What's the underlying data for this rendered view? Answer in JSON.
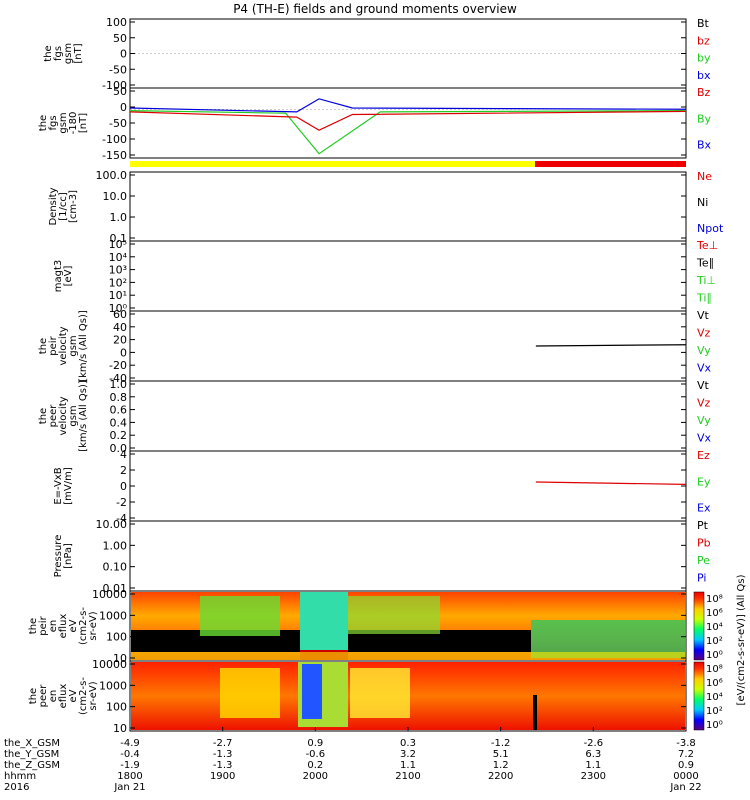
{
  "chart_data": {
    "type": "line",
    "title": "P4 (TH-E) fields and ground moments overview",
    "panels": [
      {
        "name": "fgs",
        "ylabel": [
          "the",
          "fgs",
          "gsm",
          "[nT]"
        ],
        "ylim": [
          -100,
          100
        ],
        "ticks": [
          "100",
          "50",
          "0",
          "-50",
          "-100"
        ],
        "legend": [
          {
            "label": "Bt",
            "color": "#000000"
          },
          {
            "label": "bz",
            "color": "#dd0000"
          },
          {
            "label": "by",
            "color": "#22cc22"
          },
          {
            "label": "bx",
            "color": "#0000dd"
          }
        ]
      },
      {
        "name": "fgs_sm",
        "ylabel": [
          "the",
          "fgs",
          "gsm",
          "-180",
          "[nT]"
        ],
        "ylim": [
          -175,
          70
        ],
        "ticks": [
          "50",
          "0",
          "-50",
          "-100",
          "-150"
        ],
        "legend": [
          {
            "label": "Bz",
            "color": "#dd0000"
          },
          {
            "label": "By",
            "color": "#22cc22"
          },
          {
            "label": "Bx",
            "color": "#0000dd"
          }
        ]
      },
      {
        "name": "density",
        "ylabel": [
          "Density",
          "[1/cc]",
          "[cm-3]"
        ],
        "log": true,
        "ticks": [
          "100.0",
          "10.0",
          "1.0",
          "0.1"
        ],
        "legend": [
          {
            "label": "Ne",
            "color": "#dd0000"
          },
          {
            "label": "Ni",
            "color": "#000000"
          },
          {
            "label": "Npot",
            "color": "#0000dd"
          }
        ]
      },
      {
        "name": "temperature",
        "ylabel": [
          "magt3",
          "[eV]"
        ],
        "log": true,
        "ticks": [
          "10⁵",
          "10⁴",
          "10³",
          "10²",
          "10¹",
          "10⁰"
        ],
        "legend": [
          {
            "label": "Te⊥",
            "color": "#dd0000"
          },
          {
            "label": "Te∥",
            "color": "#000000"
          },
          {
            "label": "Ti⊥",
            "color": "#22cc22"
          },
          {
            "label": "Ti∥",
            "color": "#22cc22"
          }
        ]
      },
      {
        "name": "peir_velocity",
        "ylabel": [
          "the",
          "peir",
          "velocity",
          "gsm",
          "[km/s (All Qs)]"
        ],
        "ylim": [
          -40,
          60
        ],
        "ticks": [
          "60",
          "40",
          "20",
          "0",
          "-20",
          "-40"
        ],
        "legend": [
          {
            "label": "Vt",
            "color": "#000000"
          },
          {
            "label": "Vz",
            "color": "#dd0000"
          },
          {
            "label": "Vy",
            "color": "#22cc22"
          },
          {
            "label": "Vx",
            "color": "#0000dd"
          }
        ]
      },
      {
        "name": "peer_velocity",
        "ylabel": [
          "the",
          "peer",
          "velocity",
          "gsm",
          "[km/s (All Qs)]"
        ],
        "ylim": [
          0,
          1
        ],
        "ticks": [
          "1.0",
          "0.8",
          "0.6",
          "0.4",
          "0.2",
          "0.0"
        ],
        "legend": [
          {
            "label": "Vt",
            "color": "#000000"
          },
          {
            "label": "Vz",
            "color": "#dd0000"
          },
          {
            "label": "Vy",
            "color": "#22cc22"
          },
          {
            "label": "Vx",
            "color": "#0000dd"
          }
        ]
      },
      {
        "name": "efield",
        "ylabel": [
          "E=-VxB",
          "[mV/m]"
        ],
        "ylim": [
          -4,
          4
        ],
        "ticks": [
          "4",
          "2",
          "0",
          "-2",
          "-4"
        ],
        "legend": [
          {
            "label": "Ez",
            "color": "#dd0000"
          },
          {
            "label": "Ey",
            "color": "#22cc22"
          },
          {
            "label": "Ex",
            "color": "#0000dd"
          }
        ]
      },
      {
        "name": "pressure",
        "ylabel": [
          "Pressure",
          "[nPa]"
        ],
        "log": true,
        "ticks": [
          "10.00",
          "1.00",
          "0.10",
          "0.01"
        ],
        "legend": [
          {
            "label": "Pt",
            "color": "#000000"
          },
          {
            "label": "Pb",
            "color": "#dd0000"
          },
          {
            "label": "Pe",
            "color": "#22cc22"
          },
          {
            "label": "Pi",
            "color": "#0000dd"
          }
        ]
      },
      {
        "name": "peir_eflux",
        "ylabel": [
          "the",
          "peir",
          "en",
          "eflux",
          "eV",
          "(cm2-s-",
          "sr-eV)"
        ],
        "ticks": [
          "10000",
          "1000",
          "100",
          "10"
        ]
      },
      {
        "name": "peer_eflux",
        "ylabel": [
          "the",
          "peer",
          "en",
          "eflux",
          "eV",
          "(cm2-s-",
          "sr-eV)"
        ],
        "ticks": [
          "10000",
          "1000",
          "100",
          "10"
        ]
      }
    ],
    "colorbar": {
      "label": "[eV/(cm2-s-sr-eV)] (All Qs)",
      "ticks": [
        "10⁸",
        "10⁶",
        "10⁴",
        "10²",
        "10⁰"
      ],
      "ticks2": [
        "10⁸",
        "10⁶",
        "10⁴",
        "10²",
        "10⁰"
      ]
    },
    "x_axis": {
      "row_labels": [
        "the_X_GSM",
        "the_Y_GSM",
        "the_Z_GSM",
        "hhmm",
        "2016"
      ],
      "columns": [
        {
          "x": [
            "-4.9",
            "-0.4",
            "-1.9",
            "1800",
            "Jan 21"
          ]
        },
        {
          "x": [
            "-2.7",
            "-1.3",
            "-1.3",
            "1900",
            ""
          ]
        },
        {
          "x": [
            "0.9",
            "-0.6",
            "0.2",
            "2000",
            ""
          ]
        },
        {
          "x": [
            "0.3",
            "3.2",
            "1.1",
            "2100",
            ""
          ]
        },
        {
          "x": [
            "-1.2",
            "5.1",
            "1.2",
            "2200",
            ""
          ]
        },
        {
          "x": [
            "-2.6",
            "6.3",
            "1.1",
            "2300",
            ""
          ]
        },
        {
          "x": [
            "-3.8",
            "7.2",
            "0.9",
            "0000",
            "Jan 22"
          ]
        }
      ]
    }
  }
}
